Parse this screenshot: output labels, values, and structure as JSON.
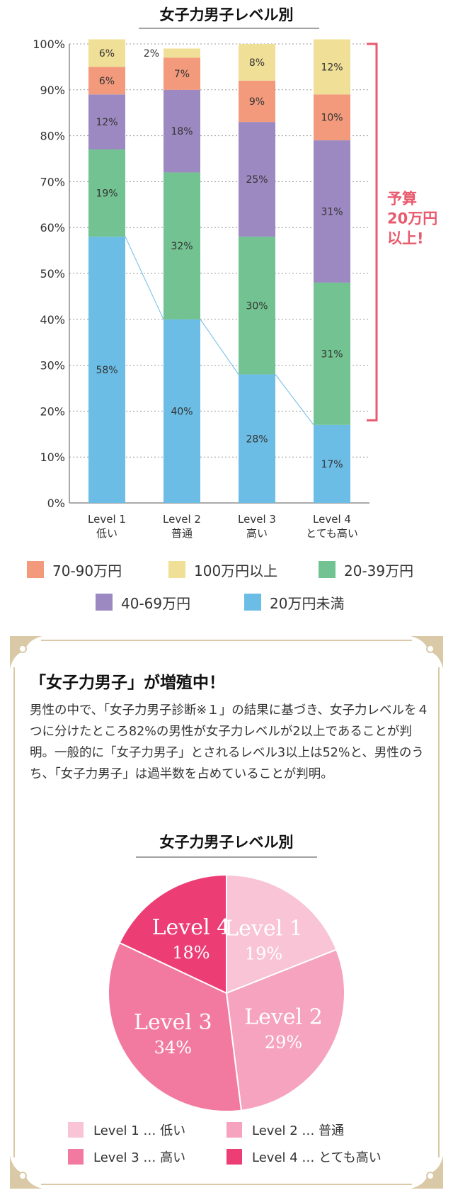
{
  "chart_data": [
    {
      "type": "bar",
      "stacked": true,
      "title": "女子力男子レベル別",
      "categories": [
        {
          "line1": "Level 1",
          "line2": "低い"
        },
        {
          "line1": "Level 2",
          "line2": "普通"
        },
        {
          "line1": "Level 3",
          "line2": "高い"
        },
        {
          "line1": "Level 4",
          "line2": "とても高い"
        }
      ],
      "yticks": [
        "0%",
        "10%",
        "20%",
        "30%",
        "40%",
        "50%",
        "60%",
        "70%",
        "80%",
        "90%",
        "100%"
      ],
      "ylim": [
        0,
        100
      ],
      "grid": true,
      "series": [
        {
          "name": "20万円未満",
          "color": "#6cbde6",
          "values": [
            58,
            40,
            28,
            17
          ],
          "labels": [
            "58%",
            "40%",
            "28%",
            "17%"
          ]
        },
        {
          "name": "20-39万円",
          "color": "#72c391",
          "values": [
            19,
            32,
            30,
            31
          ],
          "labels": [
            "19%",
            "32%",
            "30%",
            "31%"
          ]
        },
        {
          "name": "40-69万円",
          "color": "#9d89c2",
          "values": [
            12,
            18,
            25,
            31
          ],
          "labels": [
            "12%",
            "18%",
            "25%",
            "31%"
          ]
        },
        {
          "name": "70-90万円",
          "color": "#f39a7c",
          "values": [
            6,
            7,
            9,
            10
          ],
          "labels": [
            "6%",
            "7%",
            "9%",
            "10%"
          ]
        },
        {
          "name": "100万円以上",
          "color": "#f0df97",
          "values": [
            6,
            2,
            8,
            12
          ],
          "labels": [
            "6%",
            "2%",
            "8%",
            "12%"
          ]
        }
      ],
      "trend_line_color": "#6cbde6",
      "annotation": {
        "lines": [
          "予算",
          "20万円",
          "以上!"
        ],
        "color": "#e85a6e",
        "range": [
          18,
          100
        ]
      },
      "legend": [
        {
          "name": "70-90万円",
          "color": "#f39a7c"
        },
        {
          "name": "100万円以上",
          "color": "#f0df97"
        },
        {
          "name": "20-39万円",
          "color": "#72c391"
        },
        {
          "name": "40-69万円",
          "color": "#9d89c2"
        },
        {
          "name": "20万円未満",
          "color": "#6cbde6"
        }
      ]
    },
    {
      "type": "pie",
      "title": "女子力男子レベル別",
      "slices": [
        {
          "name": "Level 1",
          "value": 19,
          "label_line1": "Level 1",
          "label_line2": "19%",
          "color": "#f8c4d6"
        },
        {
          "name": "Level 2",
          "value": 29,
          "label_line1": "Level 2",
          "label_line2": "29%",
          "color": "#f5a3bf"
        },
        {
          "name": "Level 3",
          "value": 34,
          "label_line1": "Level 3",
          "label_line2": "34%",
          "color": "#f27aa1"
        },
        {
          "name": "Level 4",
          "value": 18,
          "label_line1": "Level 4",
          "label_line2": "18%",
          "color": "#ec3d75"
        }
      ],
      "legend": [
        {
          "text": "Level 1 … 低い",
          "color": "#f8c4d6"
        },
        {
          "text": "Level 2 … 普通",
          "color": "#f5a3bf"
        },
        {
          "text": "Level 3 … 高い",
          "color": "#f27aa1"
        },
        {
          "text": "Level 4 … とても高い",
          "color": "#ec3d75"
        }
      ]
    }
  ],
  "panel": {
    "title": "「女子力男子」が増殖中！",
    "body": "男性の中で、「女子力男子診断※１」の結果に基づき、女子力レベルを４つに分けたところ82%の男性が女子力レベルが2以上であることが判明。一般的に「女子力男子」とされるレベル3以上は52%と、男性のうち、「女子力男子」は過半数を占めていることが判明。",
    "frame_color": "#d9c9a6"
  }
}
